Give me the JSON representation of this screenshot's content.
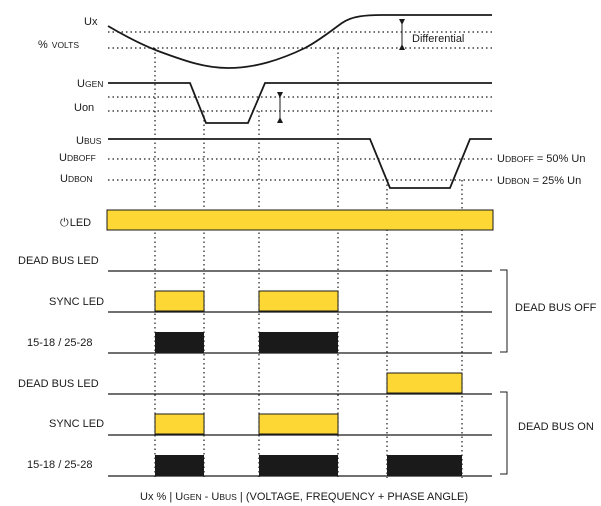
{
  "labels": {
    "ux": "Ux",
    "pct_volts_a": "%",
    "pct_volts_b": "VOLTS",
    "ugen_u": "U",
    "ugen_sub": "GEN",
    "uon": "Uon",
    "ubus_u": "U",
    "ubus_sub": "BUS",
    "udboff_u": "U",
    "udboff_sub": "DBOFF",
    "udbon_u": "U",
    "udbon_sub": "DBON",
    "led_icon": "⏻",
    "led": "LED",
    "dead_bus_led_1": "DEAD BUS LED",
    "sync_led_1": "SYNC LED",
    "relay_1": "15-18 / 25-28",
    "dead_bus_led_2": "DEAD BUS LED",
    "sync_led_2": "SYNC LED",
    "relay_2": "15-18 / 25-28"
  },
  "annotations": {
    "differential": "Differential",
    "udboff_u": "U",
    "udboff_sub": "DBOFF",
    "udboff_rest": " = 50% Un",
    "udbon_u": "U",
    "udbon_sub": "DBON",
    "udbon_rest": " = 25% Un",
    "group_off": "DEAD BUS OFF",
    "group_on": "DEAD BUS ON"
  },
  "footer": {
    "a": "Ux % | U",
    "b": "GEN",
    "c": " - U",
    "d": "BUS",
    "e": " | (VOLTAGE, FREQUENCY + PHASE ANGLE)"
  },
  "colors": {
    "led_fill": "#fdd835",
    "relay_fill": "#1a1a1a",
    "line": "#1a1a1a"
  }
}
